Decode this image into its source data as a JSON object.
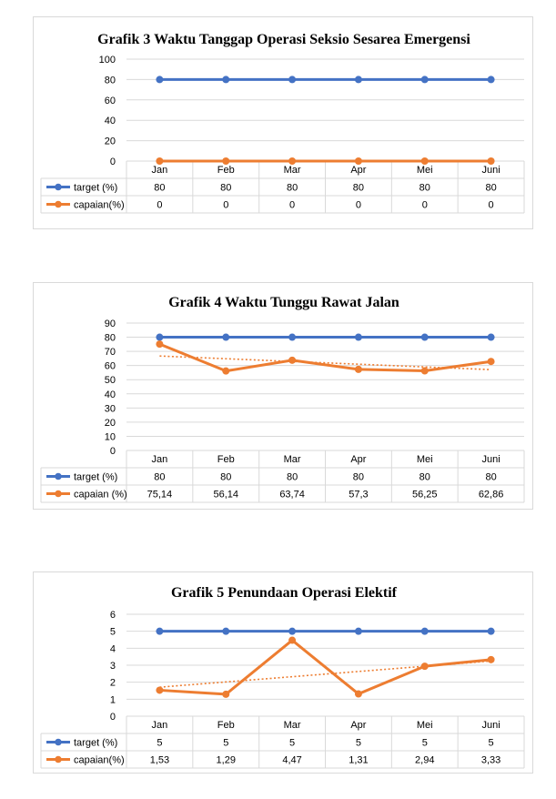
{
  "colors": {
    "target": "#4472c4",
    "capaian": "#ed7d31",
    "grid": "#d9d9d9",
    "text": "#000000"
  },
  "chart_data": [
    {
      "type": "line",
      "title": "Grafik 3 Waktu Tanggap Operasi Seksio Sesarea Emergensi",
      "categories": [
        "Jan",
        "Feb",
        "Mar",
        "Apr",
        "Mei",
        "Juni"
      ],
      "ylim": [
        0,
        100
      ],
      "yticks": [
        0,
        20,
        40,
        60,
        80,
        100
      ],
      "trendline": false,
      "series": [
        {
          "name": "target (%)",
          "values": [
            80,
            80,
            80,
            80,
            80,
            80
          ],
          "labels": [
            "80",
            "80",
            "80",
            "80",
            "80",
            "80"
          ]
        },
        {
          "name": "capaian(%)",
          "values": [
            0,
            0,
            0,
            0,
            0,
            0
          ],
          "labels": [
            "0",
            "0",
            "0",
            "0",
            "0",
            "0"
          ]
        }
      ]
    },
    {
      "type": "line",
      "title": "Grafik 4 Waktu Tunggu Rawat Jalan",
      "categories": [
        "Jan",
        "Feb",
        "Mar",
        "Apr",
        "Mei",
        "Juni"
      ],
      "ylim": [
        0,
        90
      ],
      "yticks": [
        0,
        10,
        20,
        30,
        40,
        50,
        60,
        70,
        80,
        90
      ],
      "trendline": true,
      "series": [
        {
          "name": "target (%)",
          "values": [
            80,
            80,
            80,
            80,
            80,
            80
          ],
          "labels": [
            "80",
            "80",
            "80",
            "80",
            "80",
            "80"
          ]
        },
        {
          "name": "capaian (%)",
          "values": [
            75.14,
            56.14,
            63.74,
            57.3,
            56.25,
            62.86
          ],
          "labels": [
            "75,14",
            "56,14",
            "63,74",
            "57,3",
            "56,25",
            "62,86"
          ]
        }
      ]
    },
    {
      "type": "line",
      "title": "Grafik 5 Penundaan Operasi Elektif",
      "categories": [
        "Jan",
        "Feb",
        "Mar",
        "Apr",
        "Mei",
        "Juni"
      ],
      "ylim": [
        0,
        6
      ],
      "yticks": [
        0,
        1,
        2,
        3,
        4,
        5,
        6
      ],
      "trendline": true,
      "series": [
        {
          "name": "target (%)",
          "values": [
            5,
            5,
            5,
            5,
            5,
            5
          ],
          "labels": [
            "5",
            "5",
            "5",
            "5",
            "5",
            "5"
          ]
        },
        {
          "name": "capaian(%)",
          "values": [
            1.53,
            1.29,
            4.47,
            1.31,
            2.94,
            3.33
          ],
          "labels": [
            "1,53",
            "1,29",
            "4,47",
            "1,31",
            "2,94",
            "3,33"
          ]
        }
      ]
    }
  ]
}
